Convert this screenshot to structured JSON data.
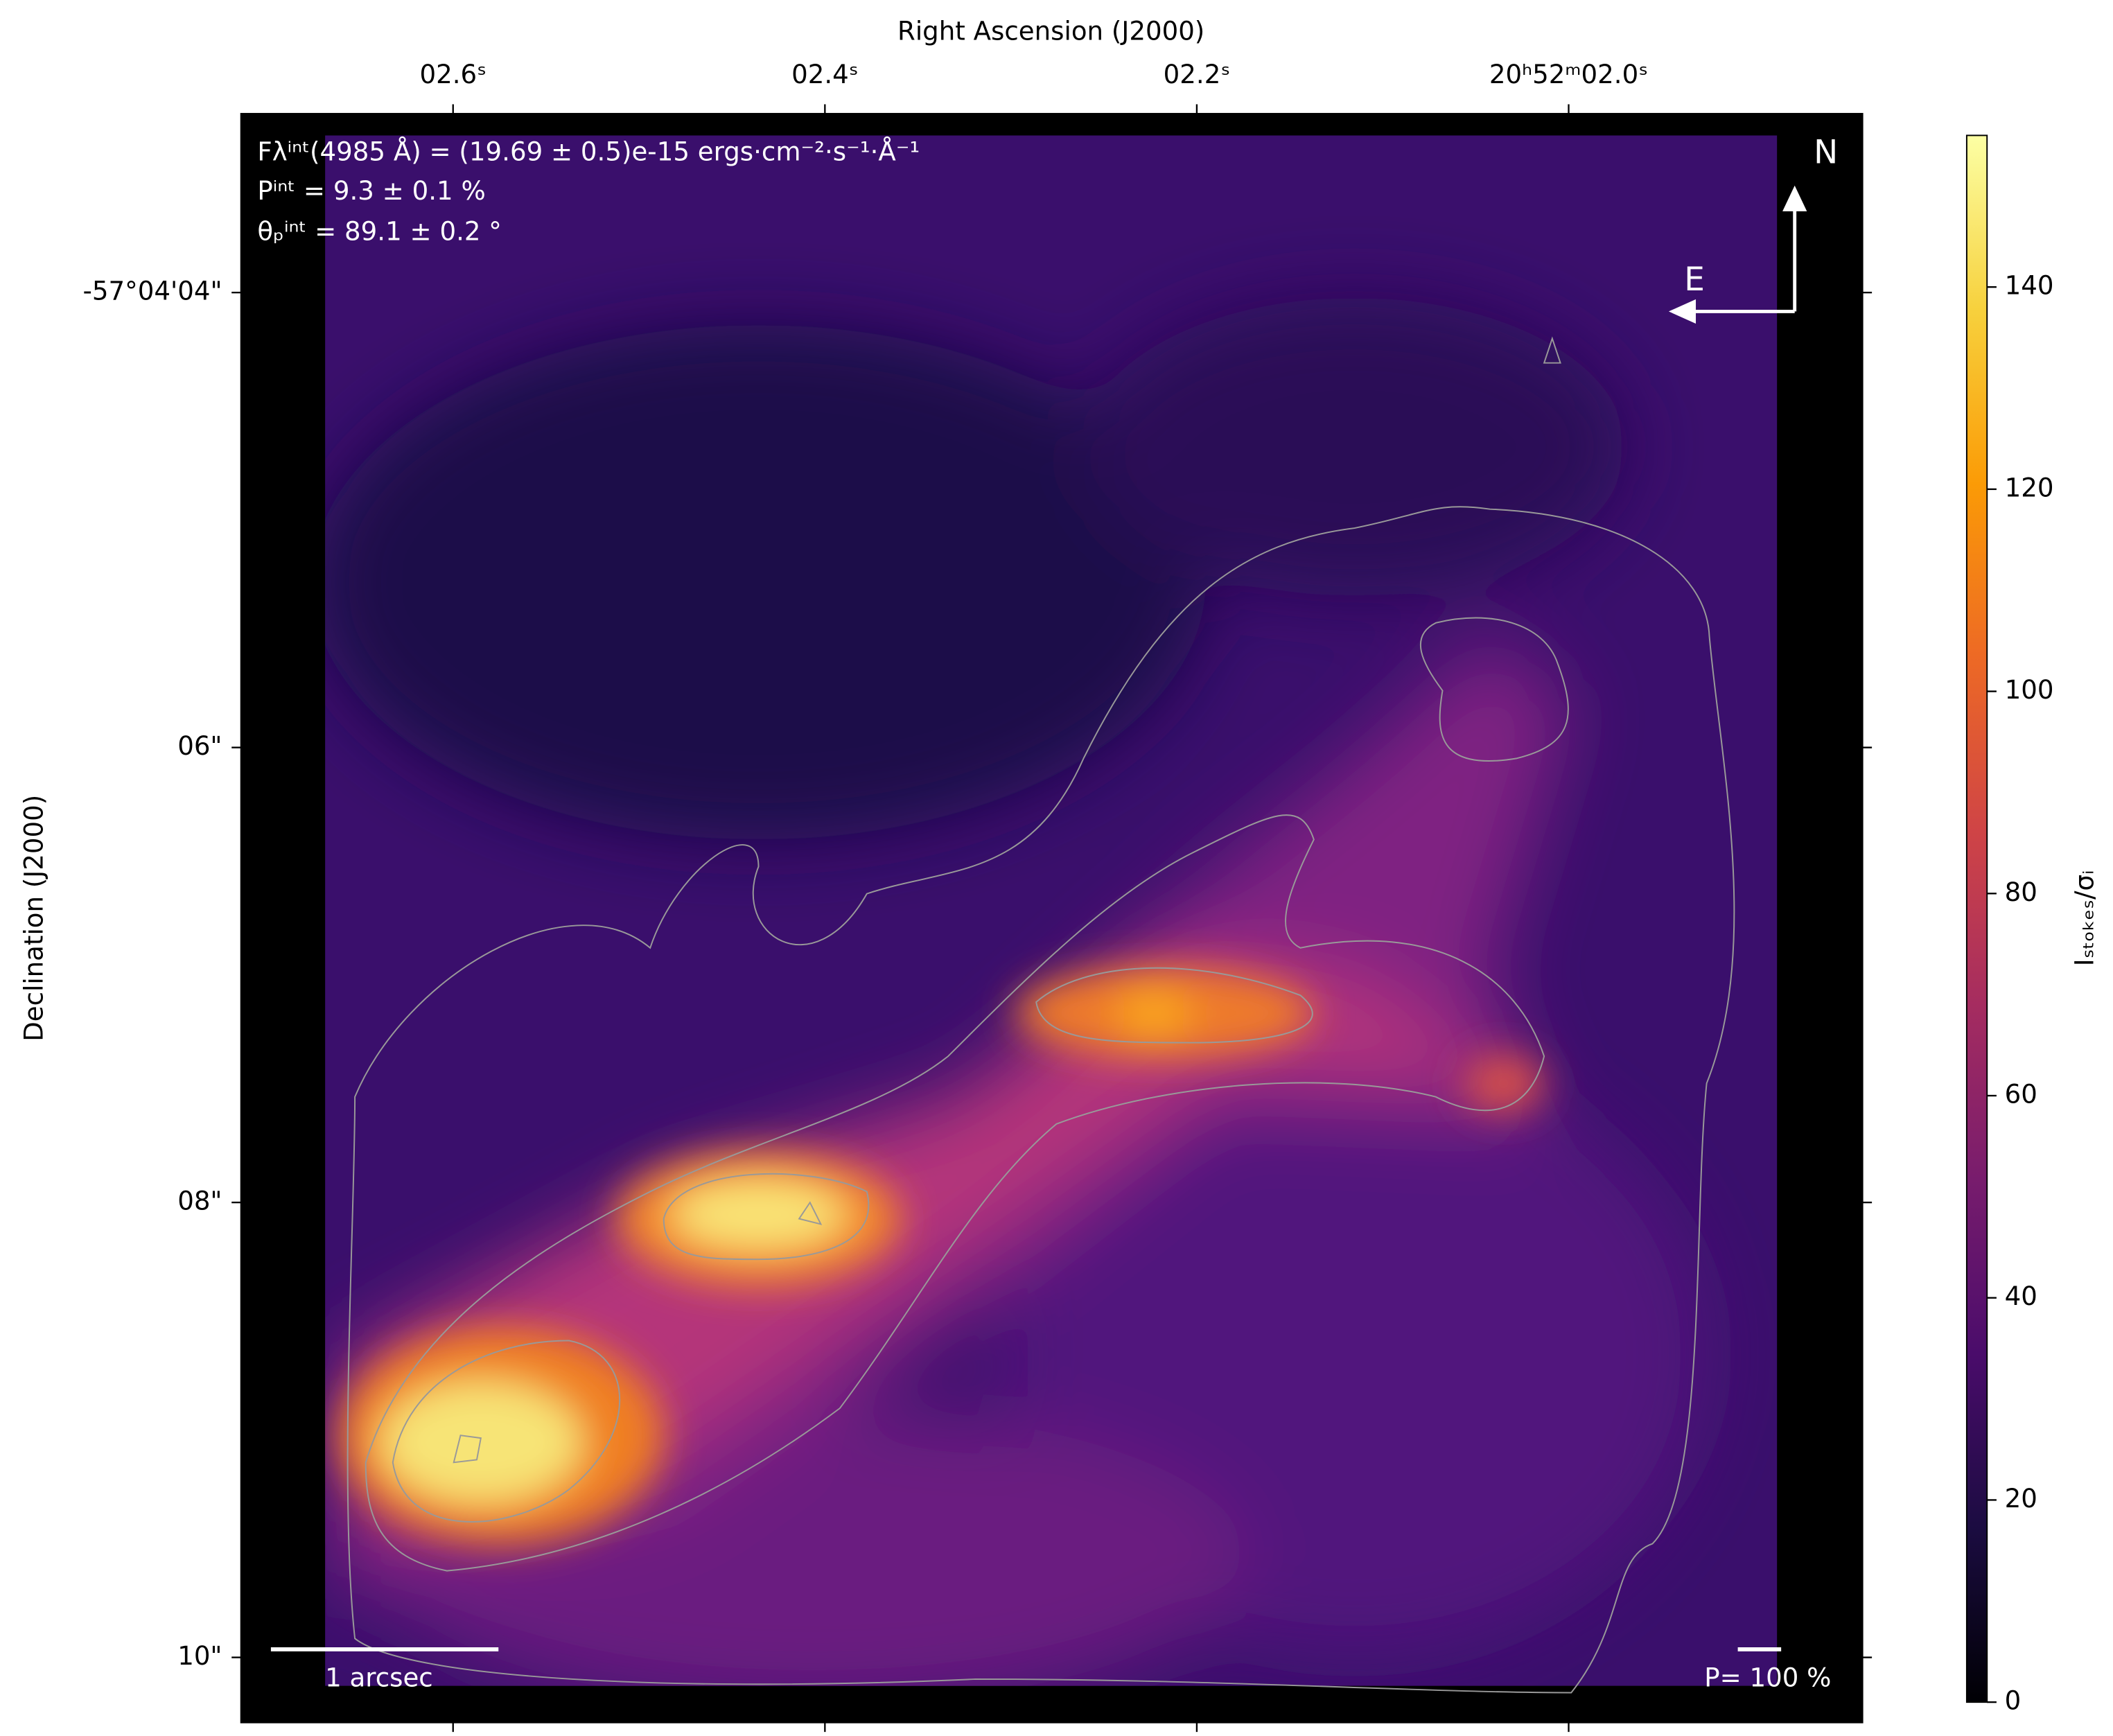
{
  "chart_data": {
    "type": "heatmap",
    "x_label": "Right Ascension (J2000)",
    "y_label": "Declination (J2000)",
    "xlim": [
      2.714,
      1.842
    ],
    "xticks": [
      {
        "value": 2.6,
        "label": "02.6ˢ"
      },
      {
        "value": 2.4,
        "label": "02.4ˢ"
      },
      {
        "value": 2.2,
        "label": "02.2ˢ"
      },
      {
        "value": 2.0,
        "label": "20ʰ52ᵐ02.0ˢ"
      }
    ],
    "ylim": [
      10.286,
      3.214
    ],
    "yticks": [
      {
        "value": 4,
        "label": "-57°04'04\""
      },
      {
        "value": 6,
        "label": "06\""
      },
      {
        "value": 8,
        "label": "08\""
      },
      {
        "value": 10,
        "label": "10\""
      }
    ],
    "colorbar": {
      "label": "Iₛₜₒₖₑₛ/σᵢ",
      "clim": [
        0,
        155
      ],
      "ticks": [
        0,
        20,
        40,
        60,
        80,
        100,
        120,
        140
      ],
      "colormap": "inferno"
    },
    "annotations": [
      "Fλⁱⁿᵗ(4985 Å) = (19.69 ± 0.5)e-15 ergs·cm⁻²·s⁻¹·Å⁻¹",
      "Pⁱⁿᵗ = 9.3 ± 0.1 %",
      "θₚⁱⁿᵗ = 89.1 ± 0.2 °"
    ],
    "compass": {
      "north": "N",
      "east": "E"
    },
    "scale_bar": "1 arcsec",
    "polarization_scale": "P= 100 %"
  }
}
